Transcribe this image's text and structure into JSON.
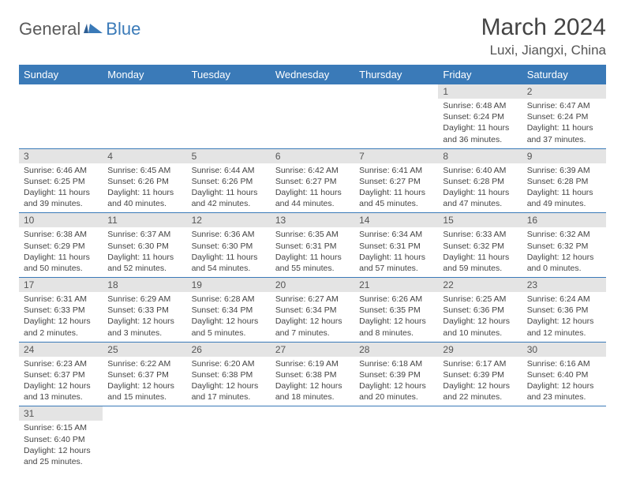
{
  "logo": {
    "part1": "General",
    "part2": "Blue"
  },
  "title": "March 2024",
  "location": "Luxi, Jiangxi, China",
  "colors": {
    "header_bg": "#3a7ab8",
    "header_text": "#ffffff",
    "daynum_bg": "#e4e4e4",
    "border": "#3a7ab8",
    "logo_gray": "#5a5a5a",
    "logo_blue": "#3a7ab8"
  },
  "weekdays": [
    "Sunday",
    "Monday",
    "Tuesday",
    "Wednesday",
    "Thursday",
    "Friday",
    "Saturday"
  ],
  "weeks": [
    [
      null,
      null,
      null,
      null,
      null,
      {
        "n": "1",
        "sr": "Sunrise: 6:48 AM",
        "ss": "Sunset: 6:24 PM",
        "d1": "Daylight: 11 hours",
        "d2": "and 36 minutes."
      },
      {
        "n": "2",
        "sr": "Sunrise: 6:47 AM",
        "ss": "Sunset: 6:24 PM",
        "d1": "Daylight: 11 hours",
        "d2": "and 37 minutes."
      }
    ],
    [
      {
        "n": "3",
        "sr": "Sunrise: 6:46 AM",
        "ss": "Sunset: 6:25 PM",
        "d1": "Daylight: 11 hours",
        "d2": "and 39 minutes."
      },
      {
        "n": "4",
        "sr": "Sunrise: 6:45 AM",
        "ss": "Sunset: 6:26 PM",
        "d1": "Daylight: 11 hours",
        "d2": "and 40 minutes."
      },
      {
        "n": "5",
        "sr": "Sunrise: 6:44 AM",
        "ss": "Sunset: 6:26 PM",
        "d1": "Daylight: 11 hours",
        "d2": "and 42 minutes."
      },
      {
        "n": "6",
        "sr": "Sunrise: 6:42 AM",
        "ss": "Sunset: 6:27 PM",
        "d1": "Daylight: 11 hours",
        "d2": "and 44 minutes."
      },
      {
        "n": "7",
        "sr": "Sunrise: 6:41 AM",
        "ss": "Sunset: 6:27 PM",
        "d1": "Daylight: 11 hours",
        "d2": "and 45 minutes."
      },
      {
        "n": "8",
        "sr": "Sunrise: 6:40 AM",
        "ss": "Sunset: 6:28 PM",
        "d1": "Daylight: 11 hours",
        "d2": "and 47 minutes."
      },
      {
        "n": "9",
        "sr": "Sunrise: 6:39 AM",
        "ss": "Sunset: 6:28 PM",
        "d1": "Daylight: 11 hours",
        "d2": "and 49 minutes."
      }
    ],
    [
      {
        "n": "10",
        "sr": "Sunrise: 6:38 AM",
        "ss": "Sunset: 6:29 PM",
        "d1": "Daylight: 11 hours",
        "d2": "and 50 minutes."
      },
      {
        "n": "11",
        "sr": "Sunrise: 6:37 AM",
        "ss": "Sunset: 6:30 PM",
        "d1": "Daylight: 11 hours",
        "d2": "and 52 minutes."
      },
      {
        "n": "12",
        "sr": "Sunrise: 6:36 AM",
        "ss": "Sunset: 6:30 PM",
        "d1": "Daylight: 11 hours",
        "d2": "and 54 minutes."
      },
      {
        "n": "13",
        "sr": "Sunrise: 6:35 AM",
        "ss": "Sunset: 6:31 PM",
        "d1": "Daylight: 11 hours",
        "d2": "and 55 minutes."
      },
      {
        "n": "14",
        "sr": "Sunrise: 6:34 AM",
        "ss": "Sunset: 6:31 PM",
        "d1": "Daylight: 11 hours",
        "d2": "and 57 minutes."
      },
      {
        "n": "15",
        "sr": "Sunrise: 6:33 AM",
        "ss": "Sunset: 6:32 PM",
        "d1": "Daylight: 11 hours",
        "d2": "and 59 minutes."
      },
      {
        "n": "16",
        "sr": "Sunrise: 6:32 AM",
        "ss": "Sunset: 6:32 PM",
        "d1": "Daylight: 12 hours",
        "d2": "and 0 minutes."
      }
    ],
    [
      {
        "n": "17",
        "sr": "Sunrise: 6:31 AM",
        "ss": "Sunset: 6:33 PM",
        "d1": "Daylight: 12 hours",
        "d2": "and 2 minutes."
      },
      {
        "n": "18",
        "sr": "Sunrise: 6:29 AM",
        "ss": "Sunset: 6:33 PM",
        "d1": "Daylight: 12 hours",
        "d2": "and 3 minutes."
      },
      {
        "n": "19",
        "sr": "Sunrise: 6:28 AM",
        "ss": "Sunset: 6:34 PM",
        "d1": "Daylight: 12 hours",
        "d2": "and 5 minutes."
      },
      {
        "n": "20",
        "sr": "Sunrise: 6:27 AM",
        "ss": "Sunset: 6:34 PM",
        "d1": "Daylight: 12 hours",
        "d2": "and 7 minutes."
      },
      {
        "n": "21",
        "sr": "Sunrise: 6:26 AM",
        "ss": "Sunset: 6:35 PM",
        "d1": "Daylight: 12 hours",
        "d2": "and 8 minutes."
      },
      {
        "n": "22",
        "sr": "Sunrise: 6:25 AM",
        "ss": "Sunset: 6:36 PM",
        "d1": "Daylight: 12 hours",
        "d2": "and 10 minutes."
      },
      {
        "n": "23",
        "sr": "Sunrise: 6:24 AM",
        "ss": "Sunset: 6:36 PM",
        "d1": "Daylight: 12 hours",
        "d2": "and 12 minutes."
      }
    ],
    [
      {
        "n": "24",
        "sr": "Sunrise: 6:23 AM",
        "ss": "Sunset: 6:37 PM",
        "d1": "Daylight: 12 hours",
        "d2": "and 13 minutes."
      },
      {
        "n": "25",
        "sr": "Sunrise: 6:22 AM",
        "ss": "Sunset: 6:37 PM",
        "d1": "Daylight: 12 hours",
        "d2": "and 15 minutes."
      },
      {
        "n": "26",
        "sr": "Sunrise: 6:20 AM",
        "ss": "Sunset: 6:38 PM",
        "d1": "Daylight: 12 hours",
        "d2": "and 17 minutes."
      },
      {
        "n": "27",
        "sr": "Sunrise: 6:19 AM",
        "ss": "Sunset: 6:38 PM",
        "d1": "Daylight: 12 hours",
        "d2": "and 18 minutes."
      },
      {
        "n": "28",
        "sr": "Sunrise: 6:18 AM",
        "ss": "Sunset: 6:39 PM",
        "d1": "Daylight: 12 hours",
        "d2": "and 20 minutes."
      },
      {
        "n": "29",
        "sr": "Sunrise: 6:17 AM",
        "ss": "Sunset: 6:39 PM",
        "d1": "Daylight: 12 hours",
        "d2": "and 22 minutes."
      },
      {
        "n": "30",
        "sr": "Sunrise: 6:16 AM",
        "ss": "Sunset: 6:40 PM",
        "d1": "Daylight: 12 hours",
        "d2": "and 23 minutes."
      }
    ],
    [
      {
        "n": "31",
        "sr": "Sunrise: 6:15 AM",
        "ss": "Sunset: 6:40 PM",
        "d1": "Daylight: 12 hours",
        "d2": "and 25 minutes."
      },
      null,
      null,
      null,
      null,
      null,
      null
    ]
  ]
}
